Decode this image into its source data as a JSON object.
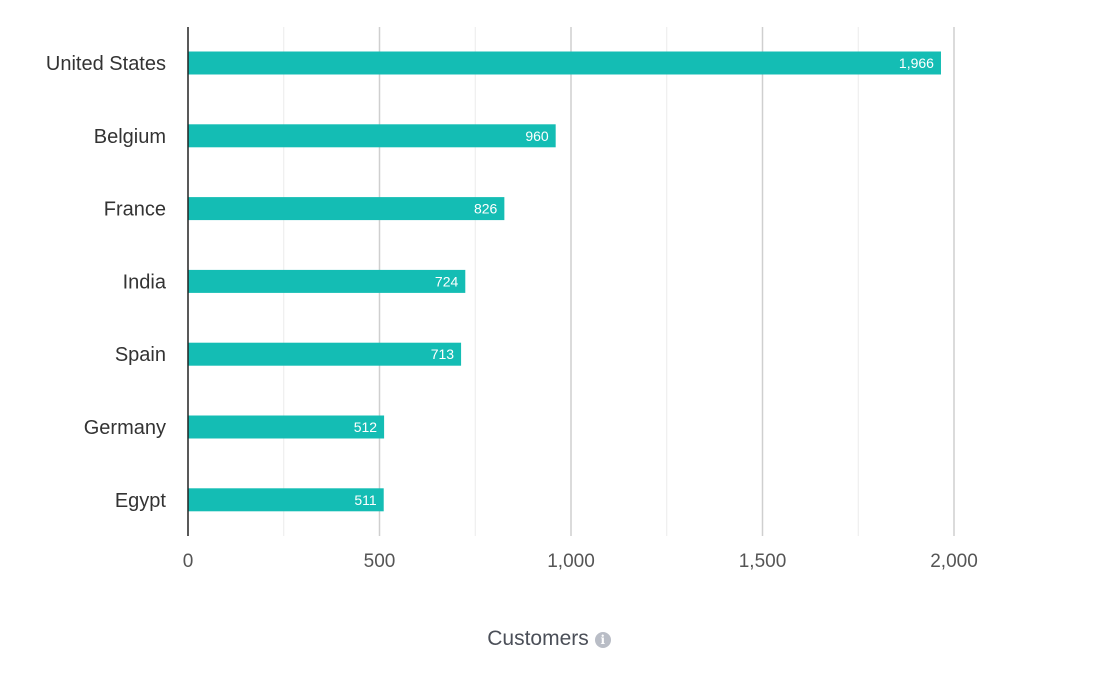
{
  "chart_data": {
    "type": "bar",
    "orientation": "horizontal",
    "categories": [
      "United States",
      "Belgium",
      "France",
      "India",
      "Spain",
      "Germany",
      "Egypt"
    ],
    "values": [
      1966,
      960,
      826,
      724,
      713,
      512,
      511
    ],
    "value_labels": [
      "1,966",
      "960",
      "826",
      "724",
      "713",
      "512",
      "511"
    ],
    "xlabel": "Customers",
    "xlim": [
      0,
      2000
    ],
    "x_ticks": [
      0,
      500,
      1000,
      1500,
      2000
    ],
    "x_tick_labels": [
      "0",
      "500",
      "1,000",
      "1,500",
      "2,000"
    ],
    "grid": true,
    "bar_color": "#14bdb4"
  },
  "x_axis_info_icon": "info-icon"
}
